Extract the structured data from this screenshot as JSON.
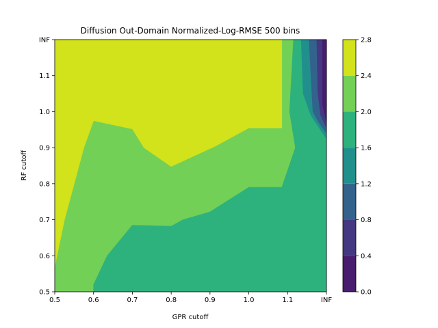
{
  "chart_data": {
    "type": "contour",
    "title": "Diffusion Out-Domain Normalized-Log-RMSE 500 bins",
    "xlabel": "GPR cutoff",
    "ylabel": "RF cutoff",
    "xticks": [
      "0.5",
      "0.6",
      "0.7",
      "0.8",
      "0.9",
      "1.0",
      "1.1",
      "INF"
    ],
    "yticks": [
      "0.5",
      "0.6",
      "0.7",
      "0.8",
      "0.9",
      "1.0",
      "1.1",
      "INF"
    ],
    "xlim": [
      0.5,
      1.2
    ],
    "ylim": [
      0.5,
      1.2
    ],
    "colorbar": {
      "ticks": [
        "0.0",
        "0.4",
        "0.8",
        "1.2",
        "1.6",
        "2.0",
        "2.4",
        "2.8"
      ],
      "levels": [
        0.0,
        0.4,
        0.8,
        1.2,
        1.6,
        2.0,
        2.4,
        2.8
      ],
      "colors": [
        "#481c6e",
        "#453882",
        "#33638d",
        "#21908d",
        "#2db27d",
        "#73d056",
        "#d2e21b"
      ]
    },
    "regions": [
      {
        "level": "2.0-2.4",
        "points": [
          [
            0.5,
            0.5
          ],
          [
            1.2,
            0.5
          ],
          [
            1.2,
            1.2
          ],
          [
            0.5,
            1.2
          ]
        ]
      },
      {
        "level": "2.4-2.8",
        "points": [
          [
            0.5,
            1.2
          ],
          [
            1.085,
            1.2
          ],
          [
            1.085,
            0.955
          ],
          [
            1.0,
            0.955
          ],
          [
            0.915,
            0.905
          ],
          [
            0.8,
            0.848
          ],
          [
            0.73,
            0.9
          ],
          [
            0.7,
            0.952
          ],
          [
            0.6,
            0.975
          ],
          [
            0.575,
            0.9
          ],
          [
            0.55,
            0.8
          ],
          [
            0.525,
            0.7
          ],
          [
            0.5,
            0.57
          ]
        ]
      },
      {
        "level": "1.6-2.0",
        "points": [
          [
            0.6,
            0.5
          ],
          [
            1.2,
            0.5
          ],
          [
            1.2,
            0.655
          ],
          [
            1.18,
            0.7
          ],
          [
            1.175,
            0.79
          ],
          [
            1.18,
            0.9
          ],
          [
            1.16,
            0.92
          ],
          [
            1.14,
            0.955
          ],
          [
            1.12,
            0.99
          ],
          [
            1.115,
            1.2
          ],
          [
            1.135,
            1.2
          ],
          [
            1.135,
            1.02
          ],
          [
            1.14,
            0.98
          ],
          [
            1.18,
            0.93
          ],
          [
            1.2,
            0.93
          ],
          [
            1.2,
            0.5
          ]
        ]
      },
      {
        "level": "1.6-2.0",
        "points": [
          [
            0.6,
            0.5
          ],
          [
            1.2,
            0.5
          ],
          [
            1.2,
            0.5
          ],
          [
            0.6,
            0.5
          ],
          [
            0.6,
            0.52
          ],
          [
            0.635,
            0.6
          ],
          [
            0.7,
            0.685
          ],
          [
            0.8,
            0.682
          ],
          [
            0.83,
            0.7
          ],
          [
            0.9,
            0.722
          ],
          [
            1.0,
            0.79
          ],
          [
            1.085,
            0.79
          ],
          [
            1.12,
            0.9
          ],
          [
            1.105,
            1.0
          ],
          [
            1.115,
            1.2
          ],
          [
            1.2,
            1.2
          ],
          [
            1.2,
            0.5
          ]
        ]
      },
      {
        "level": "1.2-1.6",
        "points": [
          [
            1.135,
            1.2
          ],
          [
            1.2,
            1.2
          ],
          [
            1.2,
            0.925
          ],
          [
            1.16,
            0.99
          ],
          [
            1.14,
            1.05
          ]
        ]
      },
      {
        "level": "0.8-1.2",
        "points": [
          [
            1.155,
            1.2
          ],
          [
            1.2,
            1.2
          ],
          [
            1.2,
            0.94
          ],
          [
            1.18,
            0.97
          ],
          [
            1.165,
            1.0
          ],
          [
            1.16,
            1.1
          ]
        ]
      },
      {
        "level": "0.4-0.8",
        "points": [
          [
            1.175,
            1.2
          ],
          [
            1.2,
            1.2
          ],
          [
            1.2,
            0.955
          ],
          [
            1.185,
            0.99
          ],
          [
            1.178,
            1.05
          ]
        ]
      },
      {
        "level": "0.0-0.4",
        "points": [
          [
            1.19,
            1.2
          ],
          [
            1.2,
            1.2
          ],
          [
            1.2,
            0.97
          ],
          [
            1.19,
            1.02
          ]
        ]
      }
    ]
  }
}
